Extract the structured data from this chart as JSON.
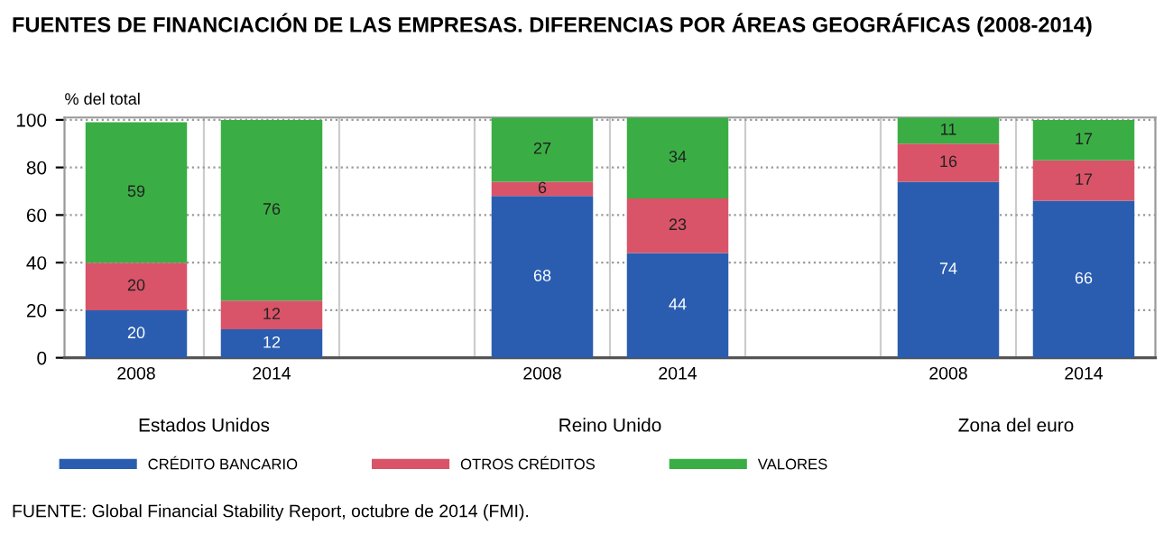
{
  "chart_data": {
    "type": "bar",
    "stacked": true,
    "title": "FUENTES DE FINANCIACIÓN DE LAS EMPRESAS. DIFERENCIAS POR ÁREAS GEOGRÁFICAS (2008-2014)",
    "ylabel": "% del total",
    "categories": [
      "2008",
      "2014",
      null,
      "2008",
      "2014",
      null,
      "2008",
      "2014"
    ],
    "series": [
      {
        "name": "CRÉDITO BANCARIO",
        "color": "#2a5db0",
        "values": [
          20,
          12,
          null,
          68,
          44,
          null,
          74,
          66
        ]
      },
      {
        "name": "OTROS CRÉDITOS",
        "color": "#d95468",
        "values": [
          20,
          12,
          null,
          6,
          23,
          null,
          16,
          17
        ]
      },
      {
        "name": "VALORES",
        "color": "#3aae45",
        "values": [
          59,
          76,
          null,
          27,
          34,
          null,
          11,
          17
        ]
      }
    ],
    "ylim": [
      0,
      101
    ],
    "yticks": [
      0,
      20,
      40,
      60,
      80,
      100
    ],
    "grid": true,
    "legend": "bottom",
    "data_labels": true,
    "annotations": [
      "Estados Unidos",
      "Reino Unido",
      "Zona del euro",
      "FUENTE: Global Financial Stability Report, octubre de 2014 (FMI)."
    ]
  }
}
